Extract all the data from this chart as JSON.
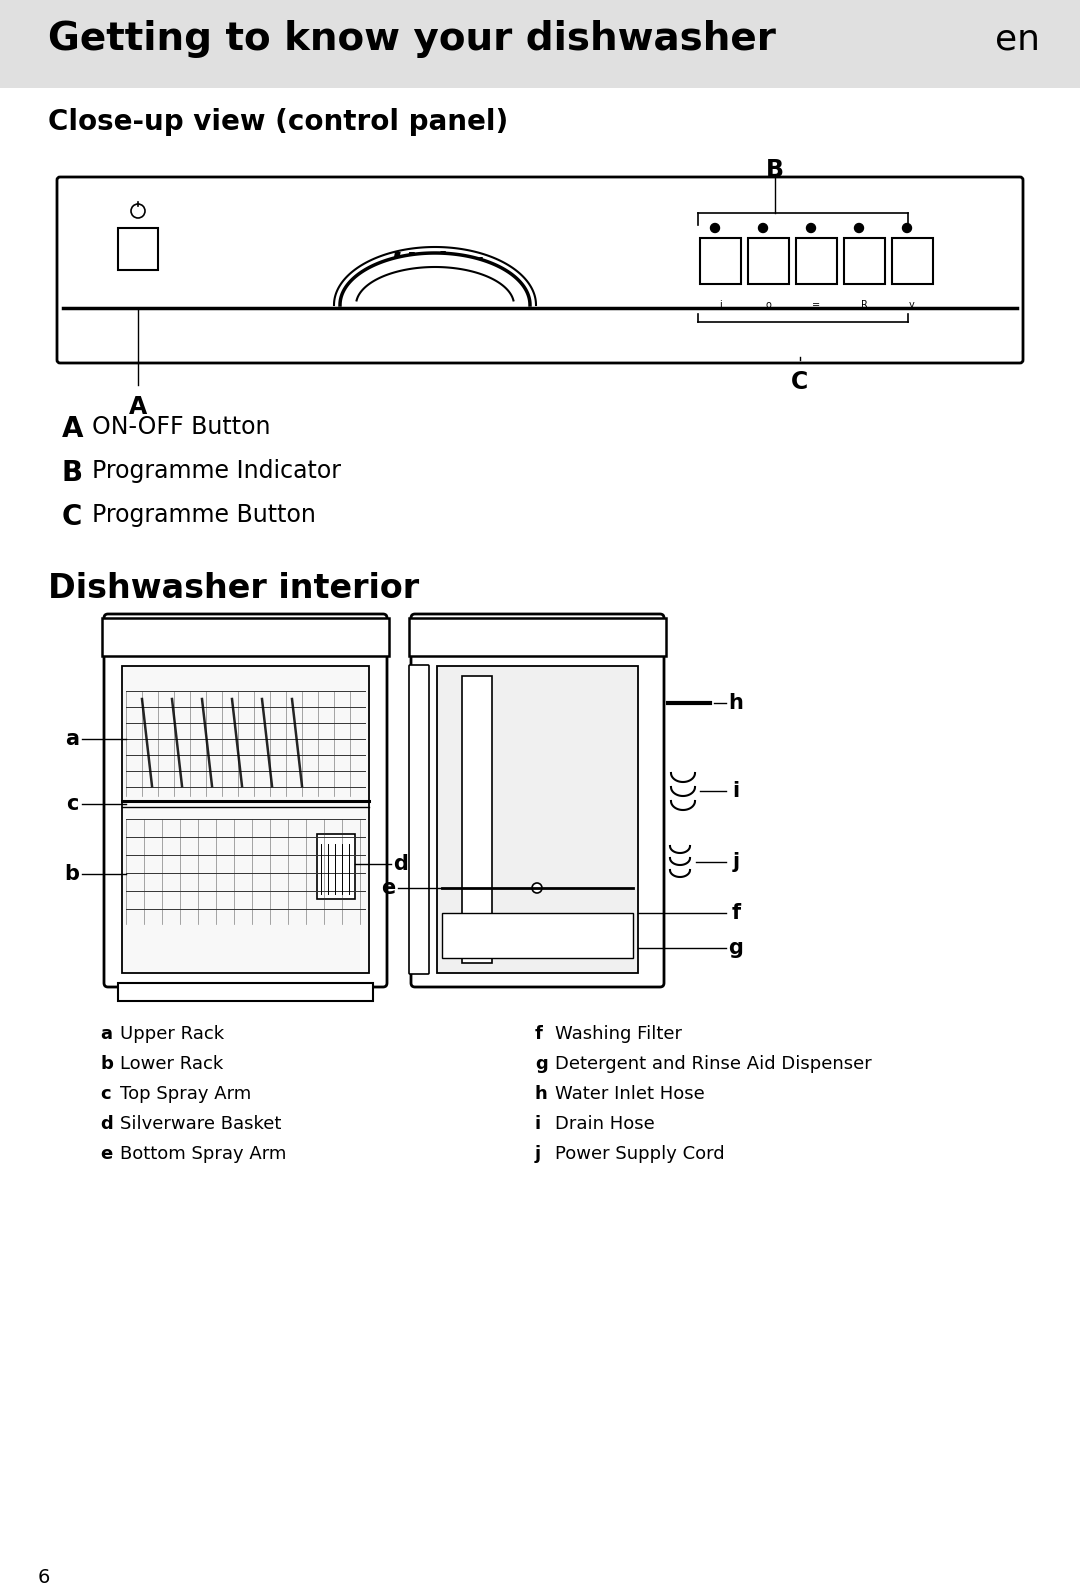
{
  "page_bg": "#ffffff",
  "header_bg": "#e8e8e8",
  "header_title": "Getting to know your dishwasher",
  "header_lang": "en",
  "section1_title": "Close-up view (control panel)",
  "panel_labels": [
    "A",
    "B",
    "C"
  ],
  "panel_label_texts": [
    "ON-OFF Button",
    "Programme Indicator",
    "Programme Button"
  ],
  "section2_title": "Dishwasher interior",
  "left_legend": [
    [
      "a",
      "Upper Rack"
    ],
    [
      "b",
      "Lower Rack"
    ],
    [
      "c",
      "Top Spray Arm"
    ],
    [
      "d",
      "Silverware Basket"
    ],
    [
      "e",
      "Bottom Spray Arm"
    ]
  ],
  "right_legend": [
    [
      "f",
      "Washing Filter"
    ],
    [
      "g",
      "Detergent and Rinse Aid Dispenser"
    ],
    [
      "h",
      "Water Inlet Hose"
    ],
    [
      "i",
      "Drain Hose"
    ],
    [
      "j",
      "Power Supply Cord"
    ]
  ],
  "page_number": "6",
  "text_color": "#000000",
  "header_bg_color": "#e0e0e0"
}
